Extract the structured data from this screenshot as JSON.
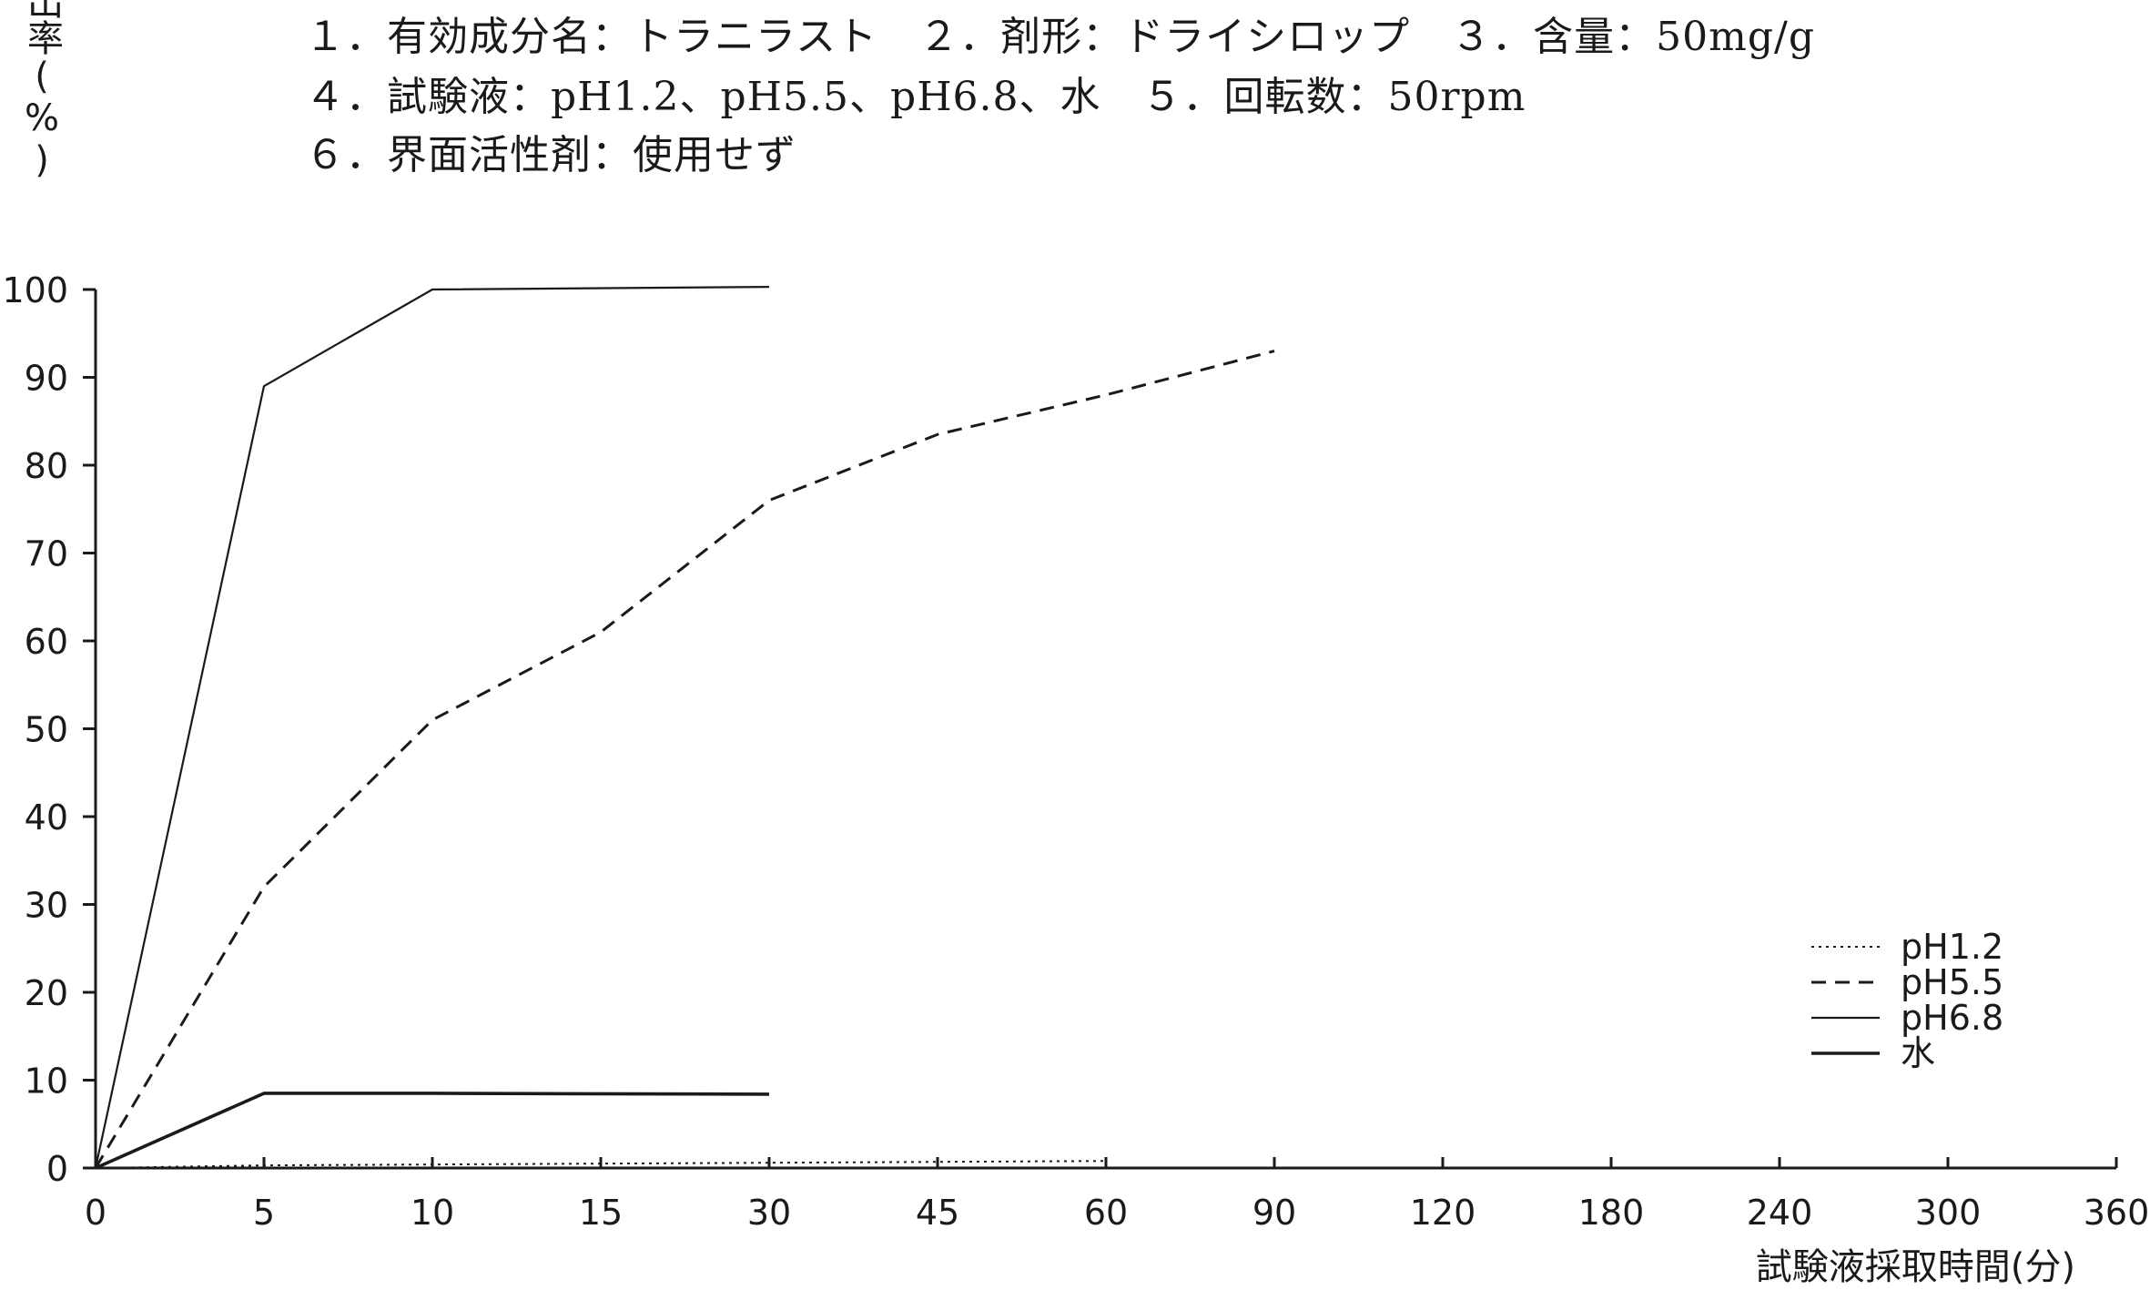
{
  "conditions": [
    "１．有効成分名：トラニラスト　２．剤形：ドライシロップ　３．含量：50mg/g",
    "４．試験液：pH1.2、pH5.5、pH6.8、水　５．回転数：50rpm",
    "６．界面活性剤：使用せず"
  ],
  "chart_data": {
    "type": "line",
    "title": "",
    "xlabel": "試験液採取時間(分)",
    "ylabel": "溶出率(%)",
    "x_ticks": [
      "0",
      "5",
      "10",
      "15",
      "30",
      "45",
      "60",
      "90",
      "120",
      "180",
      "240",
      "300",
      "360"
    ],
    "y_ticks": [
      0,
      10,
      20,
      30,
      40,
      50,
      60,
      70,
      80,
      90,
      100
    ],
    "ylim": [
      0,
      100
    ],
    "grid": false,
    "legend_position": "bottom-right",
    "series": [
      {
        "name": "pH1.2",
        "style": "dotted",
        "x": [
          0,
          5,
          10,
          15,
          30,
          45,
          60
        ],
        "values": [
          0,
          0.3,
          0.4,
          0.5,
          0.6,
          0.7,
          0.8
        ]
      },
      {
        "name": "pH5.5",
        "style": "dashed",
        "x": [
          0,
          5,
          10,
          15,
          30,
          45,
          60,
          90
        ],
        "values": [
          0,
          32,
          51,
          61,
          76,
          83.5,
          88,
          93
        ]
      },
      {
        "name": "pH6.8",
        "style": "solid-thin",
        "x": [
          0,
          5,
          10,
          30
        ],
        "values": [
          0,
          89,
          100,
          100.3
        ]
      },
      {
        "name": "水",
        "style": "solid-thick",
        "x": [
          0,
          5,
          10,
          30
        ],
        "values": [
          0,
          8.5,
          8.5,
          8.4
        ]
      }
    ]
  },
  "colors": {
    "ink": "#1a1a1a",
    "background": "#ffffff"
  }
}
